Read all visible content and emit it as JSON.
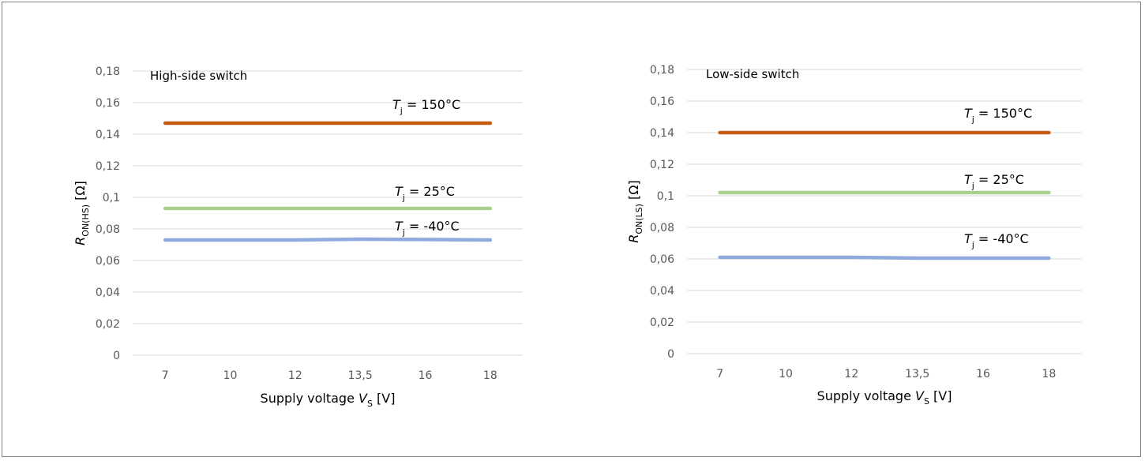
{
  "chart_data": [
    {
      "type": "line",
      "title": "High-side switch",
      "categories": [
        "7",
        "10",
        "12",
        "13,5",
        "16",
        "18"
      ],
      "ylim": [
        0,
        0.18
      ],
      "yticks": [
        "0",
        "0,02",
        "0,04",
        "0,06",
        "0,08",
        "0,1",
        "0,12",
        "0,14",
        "0,16",
        "0,18"
      ],
      "ylabel": {
        "main": "R",
        "sub": "ON(HS)",
        "unit": " [Ω]"
      },
      "xlabel": {
        "pre": "Supply voltage ",
        "var": "V",
        "sub": "S",
        "unit": " [V]"
      },
      "grid": true,
      "series": [
        {
          "name": {
            "var": "T",
            "sub": "j",
            "text": " = 150°C"
          },
          "color": "#c55a11",
          "values": [
            0.147,
            0.147,
            0.147,
            0.147,
            0.147,
            0.147
          ]
        },
        {
          "name": {
            "var": "T",
            "sub": "j",
            "text": " = 25°C"
          },
          "color": "#a9d18e",
          "values": [
            0.093,
            0.093,
            0.093,
            0.093,
            0.093,
            0.093
          ]
        },
        {
          "name": {
            "var": "T",
            "sub": "j",
            "text": " = -40°C"
          },
          "color": "#8faadc",
          "values": [
            0.073,
            0.073,
            0.073,
            0.0735,
            0.0733,
            0.073
          ]
        }
      ]
    },
    {
      "type": "line",
      "title": "Low-side switch",
      "categories": [
        "7",
        "10",
        "12",
        "13,5",
        "16",
        "18"
      ],
      "ylim": [
        0,
        0.18
      ],
      "yticks": [
        "0",
        "0,02",
        "0,04",
        "0,06",
        "0,08",
        "0,1",
        "0,12",
        "0,14",
        "0,16",
        "0,18"
      ],
      "ylabel": {
        "main": "R",
        "sub": "ON(LS)",
        "unit": " [Ω]"
      },
      "xlabel": {
        "pre": "Supply voltage ",
        "var": "V",
        "sub": "S",
        "unit": " [V]"
      },
      "grid": true,
      "series": [
        {
          "name": {
            "var": "T",
            "sub": "j",
            "text": " = 150°C"
          },
          "color": "#c55a11",
          "values": [
            0.14,
            0.14,
            0.14,
            0.14,
            0.14,
            0.14
          ]
        },
        {
          "name": {
            "var": "T",
            "sub": "j",
            "text": " = 25°C"
          },
          "color": "#a9d18e",
          "values": [
            0.102,
            0.102,
            0.102,
            0.102,
            0.102,
            0.102
          ]
        },
        {
          "name": {
            "var": "T",
            "sub": "j",
            "text": " = -40°C"
          },
          "color": "#8faadc",
          "values": [
            0.061,
            0.061,
            0.061,
            0.0605,
            0.0605,
            0.0605
          ]
        }
      ]
    }
  ]
}
